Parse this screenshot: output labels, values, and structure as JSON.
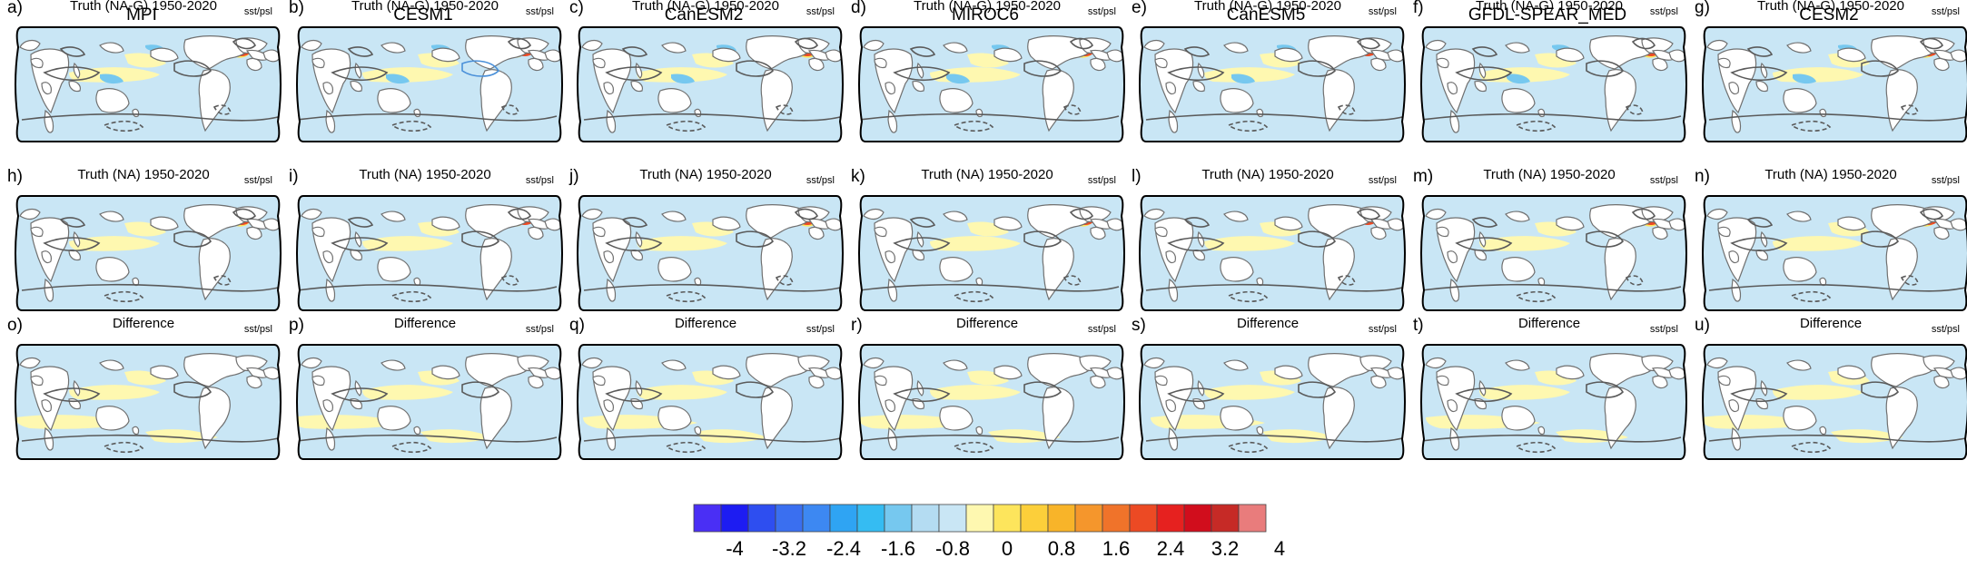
{
  "figure": {
    "models": [
      "MPI",
      "CESM1",
      "CanESM2",
      "MIROC6",
      "CanESM5",
      "GFDL-SPEAR_MED",
      "CESM2"
    ],
    "variable_label": "sst/psl",
    "row_titles": [
      "Truth (NA-G) 1950-2020",
      "Truth (NA) 1950-2020",
      "Difference"
    ],
    "panel_labels": [
      [
        "a)",
        "b)",
        "c)",
        "d)",
        "e)",
        "f)",
        "g)"
      ],
      [
        "h)",
        "i)",
        "j)",
        "k)",
        "l)",
        "m)",
        "n)"
      ],
      [
        "o)",
        "p)",
        "q)",
        "r)",
        "s)",
        "t)",
        "u)"
      ]
    ],
    "map_projection": "Robinson-like global map, Pacific-centered",
    "contour_style": "solid = positive psl, dashed = negative psl"
  },
  "colorbar": {
    "tick_labels": [
      "-4",
      "-3.2",
      "-2.4",
      "-1.6",
      "-0.8",
      "0",
      "0.8",
      "1.6",
      "2.4",
      "3.2",
      "4"
    ],
    "colors": [
      "#4a2ff5",
      "#1d1cf2",
      "#2e4ef0",
      "#3a6ff0",
      "#3d88f2",
      "#2fa4f3",
      "#35bcf2",
      "#76c8ef",
      "#b4dcf2",
      "#c9e6f5",
      "#fef8b0",
      "#fde55c",
      "#fccf3a",
      "#f8b429",
      "#f5962c",
      "#f0732a",
      "#ec4a24",
      "#e6211f",
      "#d10d1c",
      "#c62a26",
      "#e97c7c"
    ]
  }
}
